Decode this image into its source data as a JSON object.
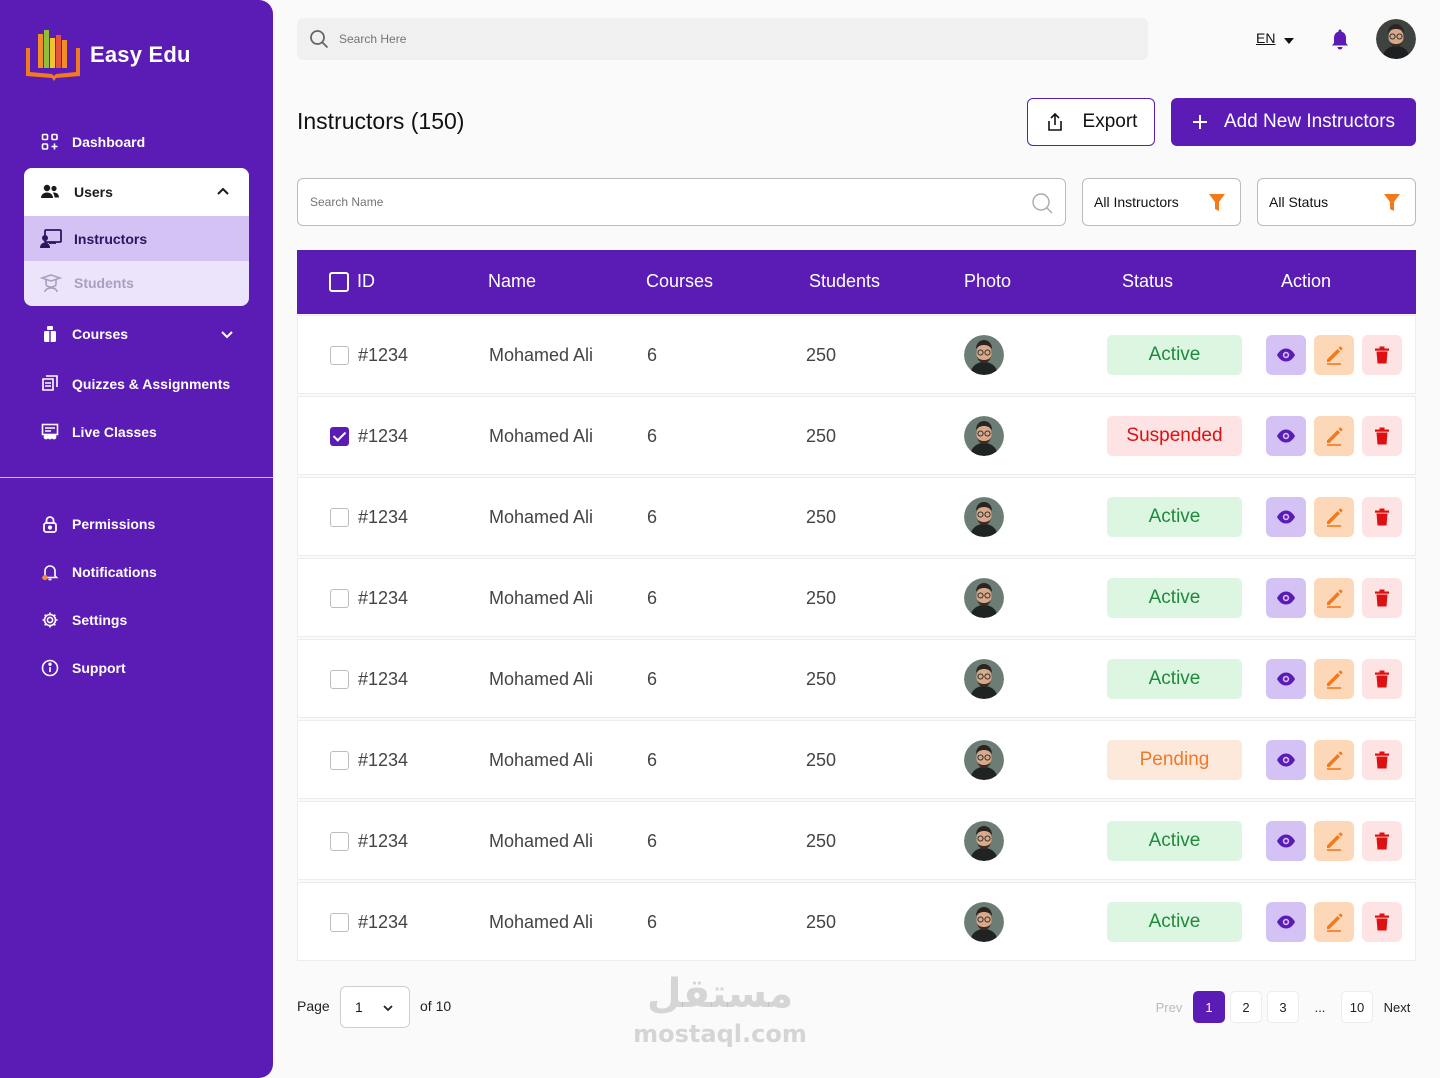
{
  "app": {
    "name": "Easy Edu"
  },
  "sidebar": {
    "dashboard": "Dashboard",
    "users": "Users",
    "instructors": "Instructors",
    "students": "Students",
    "courses": "Courses",
    "quizzes": "Quizzes & Assignments",
    "live": "Live Classes",
    "permissions": "Permissions",
    "notifications": "Notifications",
    "settings": "Settings",
    "support": "Support"
  },
  "topbar": {
    "search_placeholder": "Search Here",
    "lang": "EN"
  },
  "header": {
    "title": "Instructors (150)",
    "export": "Export",
    "add": "Add New Instructors"
  },
  "filters": {
    "search_placeholder": "Search Name",
    "instructors": "All Instructors",
    "status": "All Status"
  },
  "table": {
    "columns": [
      "ID",
      "Name",
      "Courses",
      "Students",
      "Photo",
      "Status",
      "Action"
    ],
    "rows": [
      {
        "id": "#1234",
        "name": "Mohamed Ali",
        "courses": "6",
        "students": "250",
        "status": "Active",
        "checked": false
      },
      {
        "id": "#1234",
        "name": "Mohamed Ali",
        "courses": "6",
        "students": "250",
        "status": "Suspended",
        "checked": true
      },
      {
        "id": "#1234",
        "name": "Mohamed Ali",
        "courses": "6",
        "students": "250",
        "status": "Active",
        "checked": false
      },
      {
        "id": "#1234",
        "name": "Mohamed Ali",
        "courses": "6",
        "students": "250",
        "status": "Active",
        "checked": false
      },
      {
        "id": "#1234",
        "name": "Mohamed Ali",
        "courses": "6",
        "students": "250",
        "status": "Active",
        "checked": false
      },
      {
        "id": "#1234",
        "name": "Mohamed Ali",
        "courses": "6",
        "students": "250",
        "status": "Pending",
        "checked": false
      },
      {
        "id": "#1234",
        "name": "Mohamed Ali",
        "courses": "6",
        "students": "250",
        "status": "Active",
        "checked": false
      },
      {
        "id": "#1234",
        "name": "Mohamed Ali",
        "courses": "6",
        "students": "250",
        "status": "Active",
        "checked": false
      }
    ]
  },
  "pagination": {
    "page_label": "Page",
    "current": "1",
    "of": "of 10",
    "prev": "Prev",
    "next": "Next",
    "pages": [
      "1",
      "2",
      "3",
      "...",
      "10"
    ]
  },
  "watermark": {
    "arabic": "مستقل",
    "latin": "mostaql.com"
  },
  "colors": {
    "primary": "#5b1cb5",
    "active": "#1f8a3c",
    "suspended": "#dd1111",
    "pending": "#ee7a2a"
  }
}
